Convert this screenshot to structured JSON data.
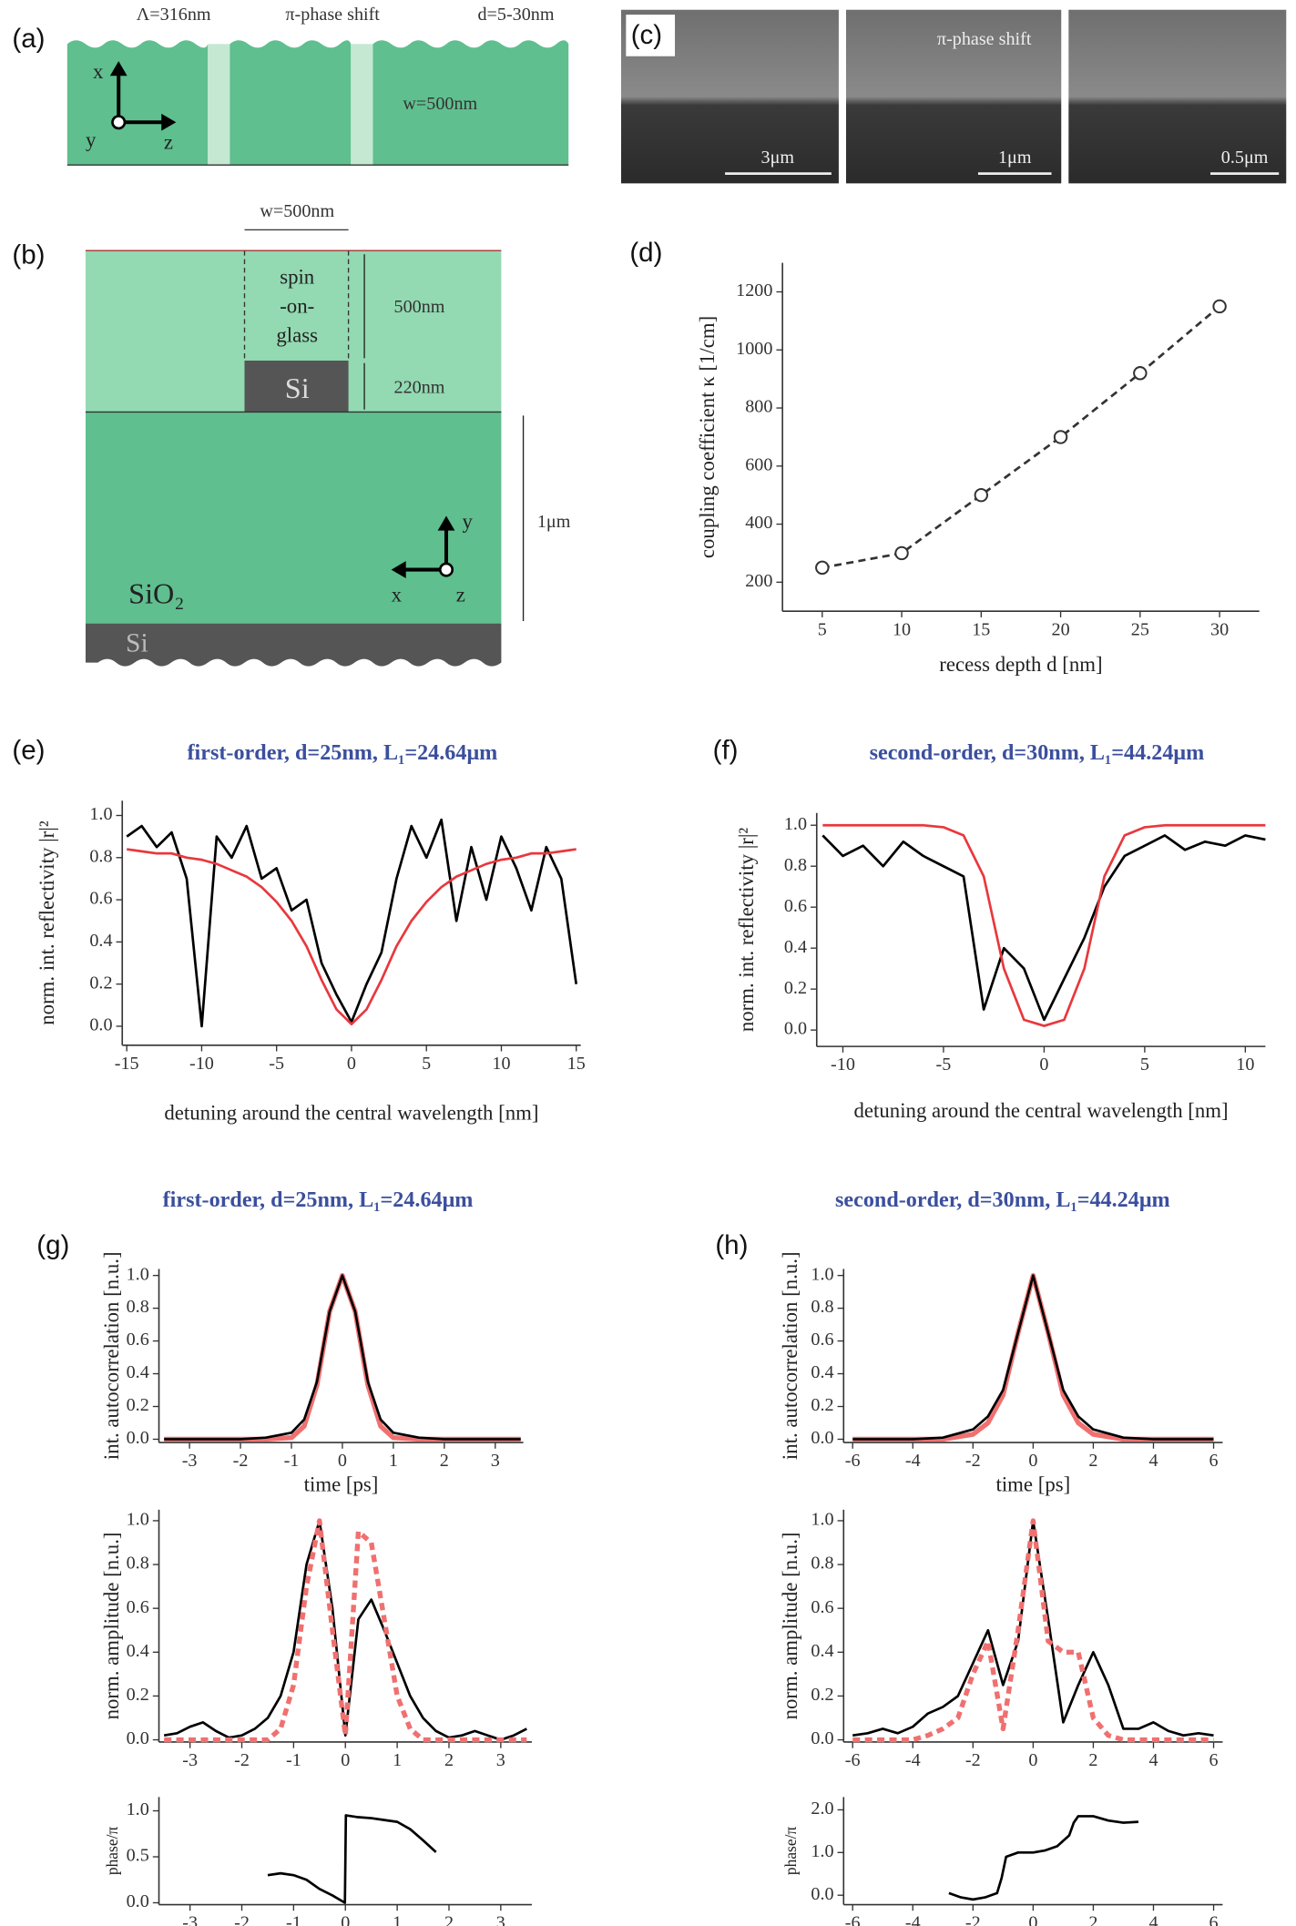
{
  "diagram_a": {
    "panel": "(a)",
    "period": "Λ=316nm",
    "phase_shift": "π-phase shift",
    "depth": "d=5-30nm",
    "width": "w=500nm",
    "axes": [
      "x",
      "y",
      "z"
    ]
  },
  "diagram_b": {
    "panel": "(b)",
    "width": "w=500nm",
    "cladding": [
      "spin",
      "-on-",
      "glass"
    ],
    "cladding_height": "500nm",
    "core": "Si",
    "core_height": "220nm",
    "box_height": "1μm",
    "box": "SiO₂",
    "substrate": "Si",
    "axes": [
      "y",
      "x",
      "z"
    ]
  },
  "sem_c": {
    "panel": "(c)",
    "label": "π-phase shift",
    "scale_bars": [
      "3μm",
      "1μm",
      "0.5μm"
    ]
  },
  "chart_data": [
    {
      "type": "line",
      "panel": "(d)",
      "x_label": "recess depth d [nm]",
      "y_label": "coupling coefficient κ [1/cm]",
      "markers": true,
      "x": [
        5,
        10,
        15,
        20,
        25,
        30
      ],
      "series": [
        {
          "color": "#333333",
          "style": "dashed",
          "values": [
            250,
            300,
            500,
            700,
            920,
            1150
          ]
        }
      ],
      "xlim": [
        2.5,
        32.5
      ],
      "xticks": [
        5,
        10,
        15,
        20,
        25,
        30
      ],
      "ylim": [
        100,
        1300
      ],
      "yticks": [
        200,
        400,
        600,
        800,
        1000,
        1200
      ]
    },
    {
      "type": "line",
      "panel": "(e)",
      "title": "first-order, d=25nm, L₁=24.64μm",
      "x_label": "detuning around the central wavelength [nm]",
      "y_label": "norm. int. reflectivity |r|²",
      "x": [
        -15,
        -14,
        -13,
        -12,
        -11,
        -10,
        -9,
        -8,
        -7,
        -6,
        -5,
        -4,
        -3,
        -2,
        -1,
        0,
        1,
        2,
        3,
        4,
        5,
        6,
        7,
        8,
        9,
        10,
        11,
        12,
        13,
        14,
        15
      ],
      "series": [
        {
          "color": "#000000",
          "style": "solid",
          "values": [
            0.9,
            0.95,
            0.85,
            0.92,
            0.7,
            0.0,
            0.9,
            0.8,
            0.95,
            0.7,
            0.75,
            0.55,
            0.6,
            0.3,
            0.15,
            0.02,
            0.2,
            0.35,
            0.7,
            0.95,
            0.8,
            0.98,
            0.5,
            0.85,
            0.6,
            0.9,
            0.75,
            0.55,
            0.85,
            0.7,
            0.2
          ]
        },
        {
          "color": "#e8383d",
          "style": "solid",
          "values": [
            0.84,
            0.83,
            0.82,
            0.82,
            0.8,
            0.79,
            0.77,
            0.74,
            0.71,
            0.66,
            0.59,
            0.5,
            0.38,
            0.22,
            0.08,
            0.01,
            0.08,
            0.22,
            0.38,
            0.5,
            0.59,
            0.66,
            0.71,
            0.74,
            0.77,
            0.79,
            0.8,
            0.82,
            0.82,
            0.83,
            0.84
          ]
        }
      ],
      "xlim": [
        -15.3,
        15.3
      ],
      "xticks": [
        -15,
        -10,
        -5,
        0,
        5,
        10,
        15
      ],
      "ylim": [
        -0.09,
        1.07
      ],
      "yticks": [
        {
          "value": 0,
          "label": "0.0"
        },
        0.2,
        0.4,
        0.6,
        0.8,
        {
          "value": 1,
          "label": "1.0"
        }
      ]
    },
    {
      "type": "line",
      "panel": "(f)",
      "title": "second-order, d=30nm, L₁=44.24μm",
      "x_label": "detuning around the central wavelength [nm]",
      "y_label": "norm. int. reflectivity |r|²",
      "x": [
        -11,
        -10,
        -9,
        -8,
        -7,
        -6,
        -5,
        -4,
        -3,
        -2,
        -1,
        0,
        1,
        2,
        3,
        4,
        5,
        6,
        7,
        8,
        9,
        10,
        11
      ],
      "series": [
        {
          "color": "#000000",
          "style": "solid",
          "values": [
            0.95,
            0.85,
            0.9,
            0.8,
            0.92,
            0.85,
            0.8,
            0.75,
            0.1,
            0.4,
            0.3,
            0.05,
            0.25,
            0.45,
            0.7,
            0.85,
            0.9,
            0.95,
            0.88,
            0.92,
            0.9,
            0.95,
            0.93
          ]
        },
        {
          "color": "#e8383d",
          "style": "solid",
          "values": [
            1,
            1,
            1,
            1,
            1,
            1,
            0.99,
            0.95,
            0.75,
            0.3,
            0.05,
            0.02,
            0.05,
            0.3,
            0.75,
            0.95,
            0.99,
            1,
            1,
            1,
            1,
            1,
            1
          ]
        }
      ],
      "xlim": [
        -11.3,
        11.0
      ],
      "xticks": [
        -10,
        -5,
        0,
        5,
        10
      ],
      "ylim": [
        -0.08,
        1.06
      ],
      "yticks": [
        {
          "value": 0,
          "label": "0.0"
        },
        0.2,
        0.4,
        0.6,
        0.8,
        {
          "value": 1,
          "label": "1.0"
        }
      ]
    },
    {
      "type": "line",
      "panel": "(g)",
      "title": "first-order, d=25nm, L₁=24.64μm",
      "x_label": "time [ps]",
      "y_label": "int. autocorrelation [n.u.]",
      "x": [
        -3.5,
        -3,
        -2.5,
        -2,
        -1.5,
        -1,
        -0.75,
        -0.5,
        -0.25,
        0,
        0.25,
        0.5,
        0.75,
        1,
        1.5,
        2,
        2.5,
        3,
        3.5
      ],
      "series": [
        {
          "color": "#f07070",
          "style": "thick",
          "values": [
            0,
            0,
            0,
            0,
            0,
            0.01,
            0.08,
            0.33,
            0.78,
            1,
            0.78,
            0.33,
            0.08,
            0.01,
            0,
            0,
            0,
            0,
            0
          ]
        },
        {
          "color": "#000000",
          "style": "solid",
          "values": [
            0,
            0,
            0,
            0,
            0.01,
            0.04,
            0.12,
            0.35,
            0.78,
            1,
            0.78,
            0.35,
            0.12,
            0.04,
            0.01,
            0,
            0,
            0,
            0
          ]
        }
      ],
      "xlim": [
        -3.6,
        3.55
      ],
      "xticks": [
        -3,
        -2,
        -1,
        0,
        1,
        2,
        3
      ],
      "ylim": [
        -0.02,
        1.04
      ],
      "yticks": [
        {
          "value": 0,
          "label": "0.0"
        },
        0.2,
        0.4,
        0.6,
        0.8,
        {
          "value": 1,
          "label": "1.0"
        }
      ]
    },
    {
      "type": "line",
      "y_label": "norm. amplitude [n.u.]",
      "x": [
        -3.5,
        -3.25,
        -3,
        -2.75,
        -2.5,
        -2.25,
        -2,
        -1.75,
        -1.5,
        -1.25,
        -1,
        -0.75,
        -0.5,
        -0.25,
        0,
        0.25,
        0.5,
        0.75,
        1,
        1.25,
        1.5,
        1.75,
        2,
        2.25,
        2.5,
        2.75,
        3,
        3.25,
        3.5
      ],
      "series": [
        {
          "color": "#000000",
          "style": "solid",
          "values": [
            0.02,
            0.03,
            0.06,
            0.08,
            0.04,
            0.01,
            0.02,
            0.05,
            0.1,
            0.2,
            0.4,
            0.8,
            1.0,
            0.6,
            0.02,
            0.55,
            0.64,
            0.5,
            0.35,
            0.2,
            0.1,
            0.04,
            0.01,
            0.02,
            0.04,
            0.02,
            0.0,
            0.02,
            0.05
          ]
        },
        {
          "color": "#f07070",
          "style": "dashed",
          "values": [
            0,
            0,
            0,
            0,
            0,
            0,
            0,
            0,
            0,
            0.05,
            0.25,
            0.7,
            1.0,
            0.5,
            0.02,
            0.95,
            0.9,
            0.55,
            0.2,
            0.05,
            0,
            0,
            0,
            0,
            0,
            0,
            0,
            0,
            0
          ]
        }
      ],
      "xlim": [
        -3.6,
        3.6
      ],
      "xticks": [
        -3,
        -2,
        -1,
        0,
        1,
        2,
        3
      ],
      "ylim": [
        -0.01,
        1.05
      ],
      "yticks": [
        {
          "value": 0,
          "label": "0.0"
        },
        0.2,
        0.4,
        0.6,
        0.8,
        {
          "value": 1,
          "label": "1.0"
        }
      ]
    },
    {
      "type": "line",
      "y_label": "phase/π",
      "x": [
        -1.5,
        -1.25,
        -1,
        -0.75,
        -0.5,
        -0.25,
        -0.01,
        0.01,
        0.25,
        0.5,
        0.75,
        1,
        1.25,
        1.5,
        1.75
      ],
      "series": [
        {
          "color": "#000000",
          "style": "solid",
          "values": [
            0.3,
            0.32,
            0.3,
            0.25,
            0.15,
            0.08,
            0.0,
            0.95,
            0.93,
            0.92,
            0.9,
            0.88,
            0.8,
            0.68,
            0.55
          ]
        }
      ],
      "xlim": [
        -3.6,
        3.6
      ],
      "xticks": [
        -3,
        -2,
        -1,
        0,
        1,
        2,
        3
      ],
      "ylim": [
        -0.02,
        1.15
      ],
      "yticks": [
        {
          "value": 0,
          "label": "0.0"
        },
        0.5,
        {
          "value": 1,
          "label": "1.0"
        }
      ]
    },
    {
      "type": "line",
      "panel": "(h)",
      "title": "second-order, d=30nm, L₁=44.24μm",
      "x_label": "time [ps]",
      "y_label": "int. autocorrelation [n.u.]",
      "x": [
        -6,
        -5,
        -4,
        -3,
        -2,
        -1.5,
        -1,
        -0.5,
        0,
        0.5,
        1,
        1.5,
        2,
        3,
        4,
        5,
        6
      ],
      "series": [
        {
          "color": "#f07070",
          "style": "thick",
          "values": [
            0,
            0,
            0,
            0,
            0.03,
            0.1,
            0.27,
            0.65,
            1,
            0.65,
            0.27,
            0.1,
            0.03,
            0,
            0,
            0,
            0
          ]
        },
        {
          "color": "#000000",
          "style": "solid",
          "values": [
            0,
            0,
            0,
            0.01,
            0.06,
            0.14,
            0.3,
            0.65,
            1,
            0.65,
            0.3,
            0.14,
            0.06,
            0.01,
            0,
            0,
            0
          ]
        }
      ],
      "xlim": [
        -6.3,
        6.3
      ],
      "xticks": [
        -6,
        -4,
        -2,
        0,
        2,
        4,
        6
      ],
      "ylim": [
        -0.02,
        1.04
      ],
      "yticks": [
        {
          "value": 0,
          "label": "0.0"
        },
        0.2,
        0.4,
        0.6,
        0.8,
        {
          "value": 1,
          "label": "1.0"
        }
      ]
    },
    {
      "type": "line",
      "y_label": "norm. amplitude [n.u.]",
      "x": [
        -6,
        -5.5,
        -5,
        -4.5,
        -4,
        -3.5,
        -3,
        -2.5,
        -2,
        -1.5,
        -1,
        -0.5,
        0,
        0.5,
        1,
        1.5,
        2,
        2.5,
        3,
        3.5,
        4,
        4.5,
        5,
        5.5,
        6
      ],
      "series": [
        {
          "color": "#000000",
          "style": "solid",
          "values": [
            0.02,
            0.03,
            0.05,
            0.03,
            0.06,
            0.12,
            0.15,
            0.2,
            0.35,
            0.5,
            0.25,
            0.45,
            1,
            0.55,
            0.08,
            0.25,
            0.4,
            0.25,
            0.05,
            0.05,
            0.08,
            0.04,
            0.02,
            0.03,
            0.02
          ]
        },
        {
          "color": "#f07070",
          "style": "dashed",
          "values": [
            0,
            0,
            0,
            0,
            0,
            0.02,
            0.05,
            0.1,
            0.3,
            0.45,
            0.05,
            0.5,
            1,
            0.45,
            0.4,
            0.4,
            0.1,
            0.02,
            0,
            0,
            0,
            0,
            0,
            0,
            0
          ]
        }
      ],
      "xlim": [
        -6.3,
        6.3
      ],
      "xticks": [
        -6,
        -4,
        -2,
        0,
        2,
        4,
        6
      ],
      "ylim": [
        -0.01,
        1.05
      ],
      "yticks": [
        {
          "value": 0,
          "label": "0.0"
        },
        0.2,
        0.4,
        0.6,
        0.8,
        {
          "value": 1,
          "label": "1.0"
        }
      ]
    },
    {
      "type": "line",
      "y_label": "phase/π",
      "x": [
        -2.8,
        -2.4,
        -2,
        -1.6,
        -1.2,
        -1.05,
        -0.9,
        -0.5,
        0,
        0.4,
        0.8,
        1.2,
        1.35,
        1.5,
        2,
        2.5,
        3,
        3.5
      ],
      "series": [
        {
          "color": "#000000",
          "style": "solid",
          "values": [
            0.05,
            -0.05,
            -0.1,
            -0.05,
            0.05,
            0.4,
            0.9,
            1.0,
            1.0,
            1.05,
            1.15,
            1.4,
            1.7,
            1.85,
            1.85,
            1.75,
            1.7,
            1.72
          ]
        }
      ],
      "xlim": [
        -6.3,
        6.3
      ],
      "xticks": [
        -6,
        -4,
        -2,
        0,
        2,
        4,
        6
      ],
      "ylim": [
        -0.22,
        2.3
      ],
      "yticks": [
        {
          "value": 0,
          "label": "0.0"
        },
        {
          "value": 1,
          "label": "1.0"
        },
        {
          "value": 2,
          "label": "2.0"
        }
      ]
    }
  ]
}
